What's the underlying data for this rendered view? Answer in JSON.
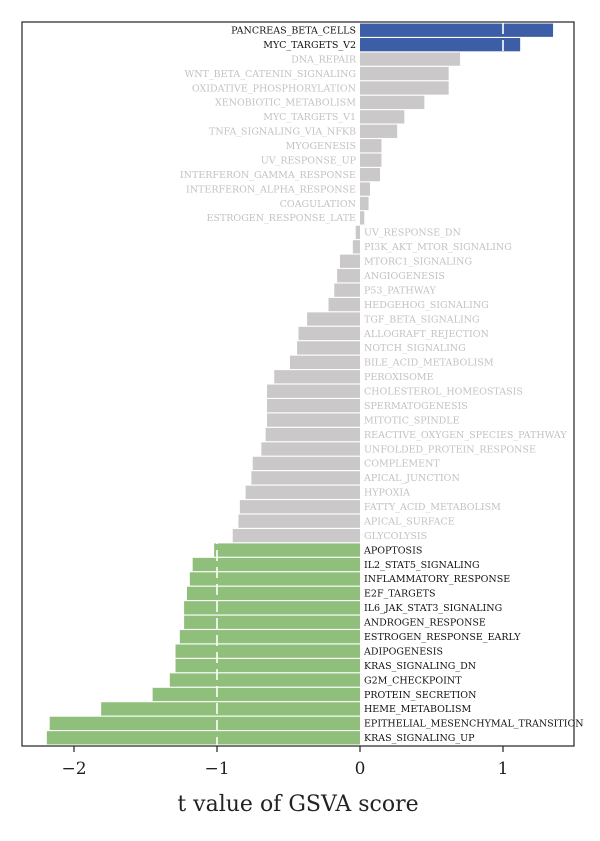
{
  "chart_data": {
    "type": "bar",
    "orientation": "horizontal",
    "xlabel": "t value of GSVA score",
    "xlim": [
      -2.38,
      1.45
    ],
    "xticks": [
      {
        "value": -2,
        "label": "−2"
      },
      {
        "value": -1,
        "label": "−1"
      },
      {
        "value": 0,
        "label": "0"
      },
      {
        "value": 1,
        "label": "1"
      }
    ],
    "reference_lines": [
      -1,
      1
    ],
    "colors": {
      "up": "#3b5ea6",
      "down": "#8fbf7a",
      "ns": "#cbc8ca",
      "label_sig": "#111111",
      "label_ns": "#c4c2c3"
    },
    "bars": [
      {
        "label": "PANCREAS_BETA_CELLS",
        "value": 1.35,
        "group": "up"
      },
      {
        "label": "MYC_TARGETS_V2",
        "value": 1.12,
        "group": "up"
      },
      {
        "label": "DNA_REPAIR",
        "value": 0.7,
        "group": "ns"
      },
      {
        "label": "WNT_BETA_CATENIN_SIGNALING",
        "value": 0.62,
        "group": "ns"
      },
      {
        "label": "OXIDATIVE_PHOSPHORYLATION",
        "value": 0.62,
        "group": "ns"
      },
      {
        "label": "XENOBIOTIC_METABOLISM",
        "value": 0.45,
        "group": "ns"
      },
      {
        "label": "MYC_TARGETS_V1",
        "value": 0.31,
        "group": "ns"
      },
      {
        "label": "TNFA_SIGNALING_VIA_NFKB",
        "value": 0.26,
        "group": "ns"
      },
      {
        "label": "MYOGENESIS",
        "value": 0.15,
        "group": "ns"
      },
      {
        "label": "UV_RESPONSE_UP",
        "value": 0.15,
        "group": "ns"
      },
      {
        "label": "INTERFERON_GAMMA_RESPONSE",
        "value": 0.14,
        "group": "ns"
      },
      {
        "label": "INTERFERON_ALPHA_RESPONSE",
        "value": 0.07,
        "group": "ns"
      },
      {
        "label": "COAGULATION",
        "value": 0.06,
        "group": "ns"
      },
      {
        "label": "ESTROGEN_RESPONSE_LATE",
        "value": 0.03,
        "group": "ns"
      },
      {
        "label": "UV_RESPONSE_DN",
        "value": -0.03,
        "group": "ns"
      },
      {
        "label": "PI3K_AKT_MTOR_SIGNALING",
        "value": -0.05,
        "group": "ns"
      },
      {
        "label": "MTORC1_SIGNALING",
        "value": -0.14,
        "group": "ns"
      },
      {
        "label": "ANGIOGENESIS",
        "value": -0.16,
        "group": "ns"
      },
      {
        "label": "P53_PATHWAY",
        "value": -0.18,
        "group": "ns"
      },
      {
        "label": "HEDGEHOG_SIGNALING",
        "value": -0.22,
        "group": "ns"
      },
      {
        "label": "TGF_BETA_SIGNALING",
        "value": -0.37,
        "group": "ns"
      },
      {
        "label": "ALLOGRAFT_REJECTION",
        "value": -0.43,
        "group": "ns"
      },
      {
        "label": "NOTCH_SIGNALING",
        "value": -0.44,
        "group": "ns"
      },
      {
        "label": "BILE_ACID_METABOLISM",
        "value": -0.49,
        "group": "ns"
      },
      {
        "label": "PEROXISOME",
        "value": -0.6,
        "group": "ns"
      },
      {
        "label": "CHOLESTEROL_HOMEOSTASIS",
        "value": -0.65,
        "group": "ns"
      },
      {
        "label": "SPERMATOGENESIS",
        "value": -0.65,
        "group": "ns"
      },
      {
        "label": "MITOTIC_SPINDLE",
        "value": -0.65,
        "group": "ns"
      },
      {
        "label": "REACTIVE_OXYGEN_SPECIES_PATHWAY",
        "value": -0.66,
        "group": "ns"
      },
      {
        "label": "UNFOLDED_PROTEIN_RESPONSE",
        "value": -0.69,
        "group": "ns"
      },
      {
        "label": "COMPLEMENT",
        "value": -0.75,
        "group": "ns"
      },
      {
        "label": "APICAL_JUNCTION",
        "value": -0.76,
        "group": "ns"
      },
      {
        "label": "HYPOXIA",
        "value": -0.8,
        "group": "ns"
      },
      {
        "label": "FATTY_ACID_METABOLISM",
        "value": -0.84,
        "group": "ns"
      },
      {
        "label": "APICAL_SURFACE",
        "value": -0.85,
        "group": "ns"
      },
      {
        "label": "GLYCOLYSIS",
        "value": -0.89,
        "group": "ns"
      },
      {
        "label": "APOPTOSIS",
        "value": -1.02,
        "group": "down"
      },
      {
        "label": "IL2_STAT5_SIGNALING",
        "value": -1.17,
        "group": "down"
      },
      {
        "label": "INFLAMMATORY_RESPONSE",
        "value": -1.19,
        "group": "down"
      },
      {
        "label": "E2F_TARGETS",
        "value": -1.21,
        "group": "down"
      },
      {
        "label": "IL6_JAK_STAT3_SIGNALING",
        "value": -1.23,
        "group": "down"
      },
      {
        "label": "ANDROGEN_RESPONSE",
        "value": -1.23,
        "group": "down"
      },
      {
        "label": "ESTROGEN_RESPONSE_EARLY",
        "value": -1.26,
        "group": "down"
      },
      {
        "label": "ADIPOGENESIS",
        "value": -1.29,
        "group": "down"
      },
      {
        "label": "KRAS_SIGNALING_DN",
        "value": -1.29,
        "group": "down"
      },
      {
        "label": "G2M_CHECKPOINT",
        "value": -1.33,
        "group": "down"
      },
      {
        "label": "PROTEIN_SECRETION",
        "value": -1.45,
        "group": "down"
      },
      {
        "label": "HEME_METABOLISM",
        "value": -1.81,
        "group": "down"
      },
      {
        "label": "EPITHELIAL_MESENCHYMAL_TRANSITION",
        "value": -2.17,
        "group": "down"
      },
      {
        "label": "KRAS_SIGNALING_UP",
        "value": -2.19,
        "group": "down"
      }
    ]
  }
}
